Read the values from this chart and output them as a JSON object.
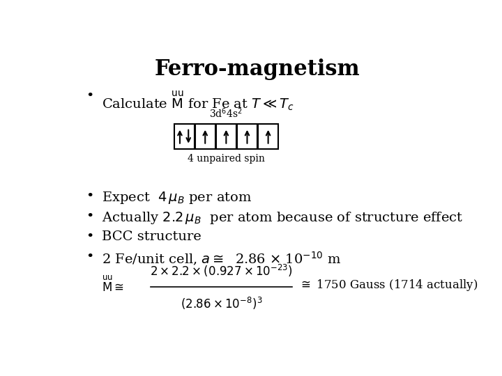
{
  "title": "Ferro-magnetism",
  "title_fontsize": 22,
  "background_color": "#ffffff",
  "text_color": "#000000",
  "font_family": "serif",
  "bullet1_text": "Calculate ",
  "bullet1_math": "$\\^{\\rm uu}M$",
  "orbital_label": "3d$^6$4s$^2$",
  "spin_label": "4 unpaired spin",
  "bullet2": "Expect  $4\\,\\mu_B$ per atom",
  "bullet3": "Actually $2.2\\,\\mu_B$  per atom because of structure effect",
  "bullet4": "BCC structure",
  "bullet5": "2 Fe/unit cell, $a \\cong$  2.86 $\\times$ 10$^{-10}$ m",
  "formula_num": "$2 \\times 2.2 \\times (0.927 \\times 10^{-23})$",
  "formula_den": "$(2.86 \\times 10^{-8})^3$",
  "formula_suffix": "$\\cong$ 1750 Gauss (1714 actually)"
}
